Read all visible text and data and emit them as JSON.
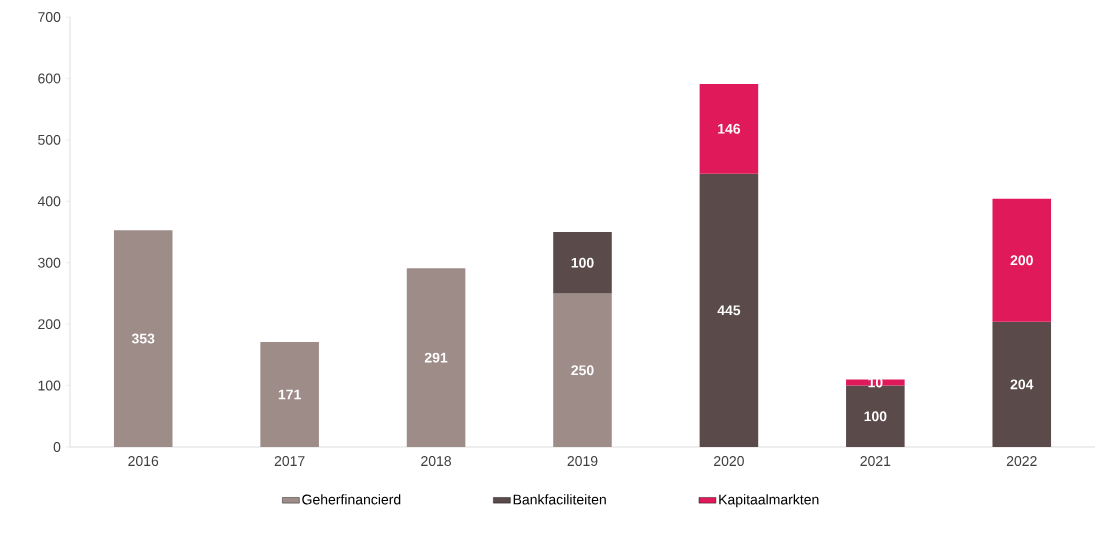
{
  "chart_data": {
    "type": "bar",
    "stacked": true,
    "categories": [
      "2016",
      "2017",
      "2018",
      "2019",
      "2020",
      "2021",
      "2022"
    ],
    "series": [
      {
        "name": "Geherfinancierd",
        "color": "#9e8c89",
        "values": [
          353,
          171,
          291,
          250,
          null,
          null,
          null
        ]
      },
      {
        "name": "Bankfaciliteiten",
        "color": "#5a4a4a",
        "values": [
          null,
          null,
          null,
          100,
          445,
          100,
          204
        ]
      },
      {
        "name": "Kapitaalmarkten",
        "color": "#e0195a",
        "values": [
          null,
          null,
          null,
          null,
          146,
          10,
          200
        ]
      }
    ],
    "ylim": [
      0,
      700
    ],
    "yticks": [
      0,
      100,
      200,
      300,
      400,
      500,
      600,
      700
    ],
    "data_labels": true,
    "legend": "bottom",
    "grid": false
  }
}
